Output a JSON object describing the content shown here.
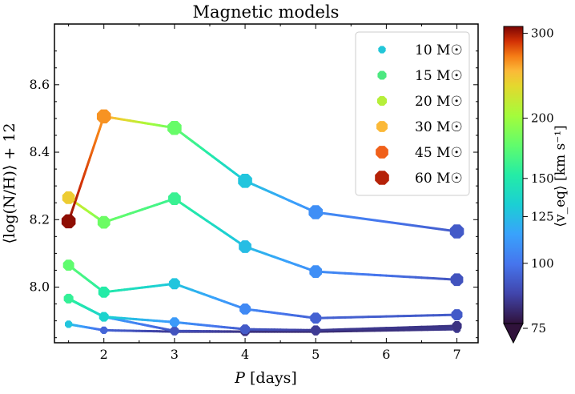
{
  "chart_data": {
    "type": "line",
    "title": "Magnetic models",
    "xlabel": "P [days]",
    "ylabel": "⟨log(N/H)⟩ + 12",
    "xlim": [
      1.3,
      7.3
    ],
    "ylim": [
      7.835,
      8.78
    ],
    "xticks": [
      2,
      3,
      4,
      5,
      6,
      7
    ],
    "yticks": [
      8.0,
      8.2,
      8.4,
      8.6
    ],
    "ytick_labels": [
      "8.0",
      "8.2",
      "8.4",
      "8.6"
    ],
    "legend_position": "top-right",
    "colorbar": {
      "label": "⟨v_eq⟩ [km s⁻¹]",
      "min": 75,
      "max": 310,
      "scale": "log",
      "extend": "min",
      "ticks": [
        75,
        100,
        125,
        150,
        200,
        300
      ],
      "tick_labels": [
        "75",
        "100",
        "125",
        "150",
        "200",
        "300"
      ]
    },
    "series": [
      {
        "name": "10 M☉",
        "marker_color": "#22c6d8",
        "x": [
          1.5,
          2,
          3,
          4,
          5,
          7
        ],
        "values": [
          7.89,
          7.872,
          7.868,
          7.868,
          7.868,
          7.875
        ],
        "v_eq": [
          128,
          95,
          83,
          80,
          80,
          83
        ]
      },
      {
        "name": "15 M☉",
        "marker_color": "#4ce880",
        "x": [
          1.5,
          2,
          3,
          4,
          5,
          7
        ],
        "values": [
          7.965,
          7.912,
          7.87,
          7.868,
          7.87,
          7.882
        ],
        "v_eq": [
          150,
          118,
          90,
          82,
          80,
          84
        ]
      },
      {
        "name": "20 M☉",
        "marker_color": "#b6ef3a",
        "x": [
          1.5,
          2,
          3,
          4,
          5,
          7
        ],
        "values": [
          7.966,
          7.912,
          7.896,
          7.875,
          7.872,
          7.885
        ],
        "v_eq": [
          158,
          135,
          112,
          92,
          84,
          82
        ]
      },
      {
        "name": "30 M☉",
        "marker_color": "#fbb938",
        "x": [
          1.5,
          2,
          3,
          4,
          5,
          7
        ],
        "values": [
          8.065,
          7.985,
          8.01,
          7.935,
          7.908,
          7.918
        ],
        "v_eq": [
          175,
          152,
          128,
          106,
          94,
          92
        ]
      },
      {
        "name": "45 M☉",
        "marker_color": "#f0601a",
        "x": [
          1.5,
          2,
          3,
          4,
          5,
          7
        ],
        "values": [
          8.265,
          8.192,
          8.262,
          8.12,
          8.046,
          8.022
        ],
        "v_eq": [
          240,
          180,
          160,
          125,
          108,
          90
        ]
      },
      {
        "name": "60 M☉",
        "marker_color": "#b52208",
        "x": [
          1.5,
          2,
          3,
          4,
          5,
          7
        ],
        "values": [
          8.195,
          8.506,
          8.472,
          8.315,
          8.222,
          8.165
        ],
        "v_eq": [
          305,
          262,
          178,
          128,
          108,
          92
        ]
      }
    ]
  }
}
